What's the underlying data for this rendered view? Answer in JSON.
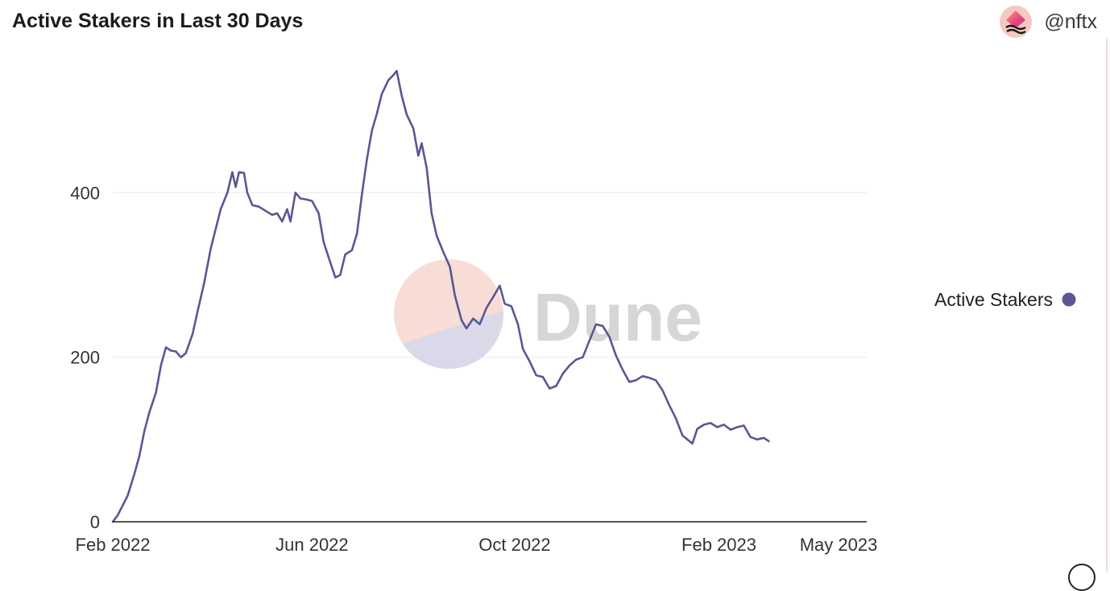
{
  "header": {
    "title": "Active Stakers in Last 30 Days",
    "owner": "@nftx"
  },
  "icons": {
    "avatar": "nftx-logo-icon",
    "watermark": "dune-logo-icon",
    "legend_marker": "legend-dot-icon"
  },
  "watermark": {
    "text": "Dune"
  },
  "colors": {
    "line": "#5a5792",
    "grid": "#ececec",
    "axis": "#1f1f1f",
    "tick_text": "#333333",
    "watermark_top": "#f7ddd5",
    "watermark_bottom": "#d9d9ea",
    "watermark_text": "#d6d6d6"
  },
  "chart_data": {
    "type": "line",
    "title": "Active Stakers in Last 30 Days",
    "xlabel": "",
    "ylabel": "",
    "ylim": [
      0,
      600
    ],
    "xlim": [
      "2022-02-01",
      "2023-05-01"
    ],
    "yticks": [
      0,
      200,
      400
    ],
    "xticks": [
      {
        "date": "2022-02-01",
        "label": "Feb 2022"
      },
      {
        "date": "2022-06-01",
        "label": "Jun 2022"
      },
      {
        "date": "2022-10-01",
        "label": "Oct 2022"
      },
      {
        "date": "2023-02-01",
        "label": "Feb 2023"
      },
      {
        "date": "2023-05-01",
        "label": "May 2023"
      }
    ],
    "grid": true,
    "legend_position": "right",
    "series": [
      {
        "name": "Active Stakers",
        "color": "#5a5792",
        "points": [
          [
            "2022-02-01",
            0
          ],
          [
            "2022-02-04",
            8
          ],
          [
            "2022-02-07",
            20
          ],
          [
            "2022-02-10",
            32
          ],
          [
            "2022-02-14",
            58
          ],
          [
            "2022-02-17",
            80
          ],
          [
            "2022-02-20",
            110
          ],
          [
            "2022-02-23",
            133
          ],
          [
            "2022-02-27",
            157
          ],
          [
            "2022-03-02",
            190
          ],
          [
            "2022-03-05",
            212
          ],
          [
            "2022-03-08",
            208
          ],
          [
            "2022-03-11",
            207
          ],
          [
            "2022-03-14",
            200
          ],
          [
            "2022-03-17",
            205
          ],
          [
            "2022-03-21",
            228
          ],
          [
            "2022-03-24",
            255
          ],
          [
            "2022-03-28",
            290
          ],
          [
            "2022-04-01",
            332
          ],
          [
            "2022-04-04",
            356
          ],
          [
            "2022-04-07",
            380
          ],
          [
            "2022-04-11",
            400
          ],
          [
            "2022-04-14",
            425
          ],
          [
            "2022-04-16",
            407
          ],
          [
            "2022-04-18",
            425
          ],
          [
            "2022-04-21",
            424
          ],
          [
            "2022-04-23",
            400
          ],
          [
            "2022-04-26",
            385
          ],
          [
            "2022-04-30",
            383
          ],
          [
            "2022-05-04",
            378
          ],
          [
            "2022-05-08",
            373
          ],
          [
            "2022-05-11",
            375
          ],
          [
            "2022-05-14",
            365
          ],
          [
            "2022-05-17",
            380
          ],
          [
            "2022-05-19",
            365
          ],
          [
            "2022-05-22",
            400
          ],
          [
            "2022-05-25",
            393
          ],
          [
            "2022-05-28",
            392
          ],
          [
            "2022-06-01",
            390
          ],
          [
            "2022-06-05",
            375
          ],
          [
            "2022-06-08",
            340
          ],
          [
            "2022-06-12",
            315
          ],
          [
            "2022-06-15",
            297
          ],
          [
            "2022-06-18",
            300
          ],
          [
            "2022-06-21",
            325
          ],
          [
            "2022-06-25",
            330
          ],
          [
            "2022-06-28",
            350
          ],
          [
            "2022-07-01",
            398
          ],
          [
            "2022-07-04",
            440
          ],
          [
            "2022-07-07",
            475
          ],
          [
            "2022-07-10",
            496
          ],
          [
            "2022-07-13",
            520
          ],
          [
            "2022-07-17",
            537
          ],
          [
            "2022-07-20",
            543
          ],
          [
            "2022-07-22",
            548
          ],
          [
            "2022-07-25",
            518
          ],
          [
            "2022-07-28",
            495
          ],
          [
            "2022-08-01",
            478
          ],
          [
            "2022-08-04",
            445
          ],
          [
            "2022-08-06",
            460
          ],
          [
            "2022-08-09",
            430
          ],
          [
            "2022-08-12",
            375
          ],
          [
            "2022-08-15",
            348
          ],
          [
            "2022-08-19",
            328
          ],
          [
            "2022-08-23",
            310
          ],
          [
            "2022-08-26",
            275
          ],
          [
            "2022-08-30",
            245
          ],
          [
            "2022-09-02",
            235
          ],
          [
            "2022-09-06",
            247
          ],
          [
            "2022-09-10",
            240
          ],
          [
            "2022-09-14",
            260
          ],
          [
            "2022-09-18",
            273
          ],
          [
            "2022-09-22",
            287
          ],
          [
            "2022-09-25",
            265
          ],
          [
            "2022-09-29",
            262
          ],
          [
            "2022-10-03",
            240
          ],
          [
            "2022-10-06",
            210
          ],
          [
            "2022-10-10",
            195
          ],
          [
            "2022-10-14",
            178
          ],
          [
            "2022-10-18",
            176
          ],
          [
            "2022-10-22",
            162
          ],
          [
            "2022-10-26",
            165
          ],
          [
            "2022-10-30",
            180
          ],
          [
            "2022-11-03",
            190
          ],
          [
            "2022-11-07",
            197
          ],
          [
            "2022-11-11",
            200
          ],
          [
            "2022-11-15",
            220
          ],
          [
            "2022-11-19",
            240
          ],
          [
            "2022-11-23",
            238
          ],
          [
            "2022-11-27",
            225
          ],
          [
            "2022-12-01",
            202
          ],
          [
            "2022-12-05",
            185
          ],
          [
            "2022-12-09",
            170
          ],
          [
            "2022-12-13",
            172
          ],
          [
            "2022-12-17",
            177
          ],
          [
            "2022-12-21",
            175
          ],
          [
            "2022-12-25",
            172
          ],
          [
            "2022-12-29",
            160
          ],
          [
            "2023-01-02",
            142
          ],
          [
            "2023-01-06",
            126
          ],
          [
            "2023-01-10",
            105
          ],
          [
            "2023-01-13",
            100
          ],
          [
            "2023-01-16",
            95
          ],
          [
            "2023-01-19",
            113
          ],
          [
            "2023-01-23",
            118
          ],
          [
            "2023-01-27",
            120
          ],
          [
            "2023-01-31",
            115
          ],
          [
            "2023-02-04",
            118
          ],
          [
            "2023-02-08",
            112
          ],
          [
            "2023-02-12",
            115
          ],
          [
            "2023-02-16",
            117
          ],
          [
            "2023-02-20",
            103
          ],
          [
            "2023-02-24",
            100
          ],
          [
            "2023-02-28",
            102
          ],
          [
            "2023-03-03",
            98
          ]
        ]
      }
    ]
  }
}
